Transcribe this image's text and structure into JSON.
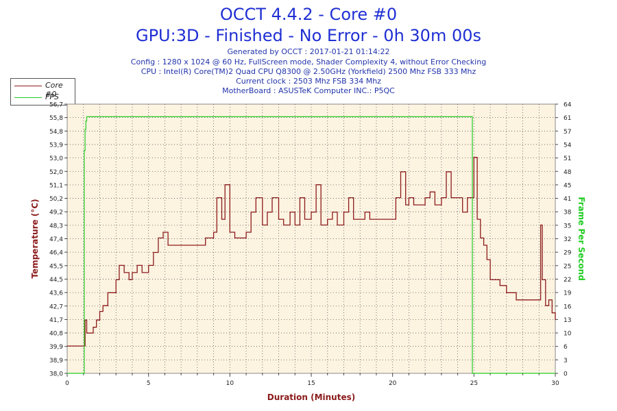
{
  "header": {
    "title_line1": "OCCT 4.4.2 - Core #0",
    "title_line2": "GPU:3D - Finished - No Error - 0h 30m 00s",
    "info_lines": [
      "Generated by OCCT : 2017-01-21 01:14:22",
      "Config : 1280 x 1024 @ 60 Hz, FullScreen mode, Shader Complexity 4, without Error Checking",
      "CPU : Intel(R) Core(TM)2 Quad CPU Q8300 @ 2.50GHz (Yorkfield) 2500 Mhz FSB 333 Mhz",
      "Current clock : 2503 Mhz FSB 334 Mhz",
      "MotherBoard : ASUSTeK Computer INC.: P5QC"
    ]
  },
  "legend": {
    "items": [
      {
        "label": "Core #0",
        "color": "#8b1a1a"
      },
      {
        "label": "FPS",
        "color": "#22cc22"
      }
    ]
  },
  "colors": {
    "temperature_line": "#8b1a1a",
    "fps_line": "#22cc22",
    "plot_background": "#fdf3e1",
    "grid": "#555555",
    "axis_label_left": "#8b1a1a",
    "axis_label_right": "#22cc22",
    "axis_label_bottom": "#8b1a1a"
  },
  "chart_data": {
    "type": "line",
    "xlabel": "Duration (Minutes)",
    "ylabel": "Temperature (°C)",
    "y2label": "Frame Per Second",
    "xlim": [
      0,
      30
    ],
    "ylim": [
      38.0,
      56.7
    ],
    "y2lim": [
      0,
      64
    ],
    "x_ticks": [
      0,
      5,
      10,
      15,
      20,
      25,
      30
    ],
    "y_ticks": [
      "38,0",
      "38,9",
      "39,9",
      "40,8",
      "41,7",
      "42,7",
      "43,6",
      "44,5",
      "45,5",
      "46,4",
      "47,4",
      "48,3",
      "49,2",
      "50,2",
      "51,1",
      "52,0",
      "53,0",
      "53,9",
      "54,8",
      "55,8",
      "56,7"
    ],
    "y2_ticks": [
      0,
      3,
      6,
      10,
      13,
      16,
      19,
      22,
      25,
      29,
      32,
      35,
      38,
      41,
      45,
      48,
      51,
      54,
      57,
      61,
      64
    ],
    "grid": true,
    "legend_position": "top-left",
    "series": [
      {
        "name": "Core #0",
        "axis": "left",
        "x": [
          0,
          1.0,
          1.1,
          1.2,
          1.5,
          1.6,
          1.8,
          2.0,
          2.2,
          2.5,
          2.7,
          3.0,
          3.2,
          3.5,
          3.8,
          4.0,
          4.3,
          4.6,
          5.0,
          5.3,
          5.6,
          5.9,
          6.2,
          6.6,
          7.0,
          7.5,
          8.0,
          8.5,
          9.0,
          9.2,
          9.5,
          9.7,
          10.0,
          10.3,
          10.6,
          11.0,
          11.3,
          11.6,
          12.0,
          12.3,
          12.6,
          13.0,
          13.3,
          13.7,
          14.0,
          14.3,
          14.6,
          15.0,
          15.3,
          15.6,
          16.0,
          16.3,
          16.6,
          17.0,
          17.3,
          17.6,
          18.0,
          18.3,
          18.6,
          19.0,
          19.5,
          20.0,
          20.2,
          20.5,
          20.8,
          21.0,
          21.3,
          21.6,
          22.0,
          22.3,
          22.6,
          23.0,
          23.3,
          23.6,
          24.0,
          24.3,
          24.6,
          24.9,
          25.0,
          25.2,
          25.4,
          25.6,
          25.8,
          26.0,
          26.3,
          26.6,
          27.0,
          27.3,
          27.6,
          28.0,
          28.4,
          28.8,
          29.0,
          29.1,
          29.2,
          29.4,
          29.6,
          29.8,
          30.0
        ],
        "values": [
          39.9,
          39.9,
          41.7,
          40.8,
          40.8,
          41.2,
          41.7,
          42.3,
          42.7,
          43.6,
          43.6,
          44.5,
          45.5,
          45.0,
          44.5,
          45.0,
          45.5,
          45.0,
          45.5,
          46.4,
          47.4,
          47.8,
          46.9,
          46.9,
          46.9,
          46.9,
          46.9,
          47.4,
          47.8,
          50.2,
          48.7,
          51.1,
          47.8,
          47.4,
          47.4,
          47.8,
          49.2,
          50.2,
          48.3,
          49.2,
          50.2,
          48.7,
          48.3,
          49.2,
          48.3,
          50.2,
          48.7,
          49.2,
          51.1,
          48.3,
          48.7,
          49.2,
          48.3,
          49.2,
          50.2,
          48.7,
          48.7,
          49.2,
          48.7,
          48.7,
          48.7,
          48.7,
          50.2,
          52.0,
          49.7,
          50.2,
          49.7,
          49.7,
          50.2,
          50.6,
          49.7,
          50.2,
          52.0,
          50.2,
          50.2,
          49.2,
          50.2,
          50.2,
          53.0,
          48.7,
          47.4,
          46.9,
          45.9,
          44.5,
          44.5,
          44.1,
          43.6,
          43.6,
          43.1,
          43.1,
          43.1,
          43.1,
          43.1,
          48.3,
          44.5,
          42.7,
          43.1,
          42.2,
          41.7
        ]
      },
      {
        "name": "FPS",
        "axis": "right",
        "x": [
          0,
          1.05,
          1.05,
          1.1,
          1.15,
          1.2,
          24.9,
          24.9,
          30
        ],
        "values": [
          0,
          0,
          53,
          58,
          60,
          61,
          61,
          0,
          0
        ]
      }
    ]
  }
}
